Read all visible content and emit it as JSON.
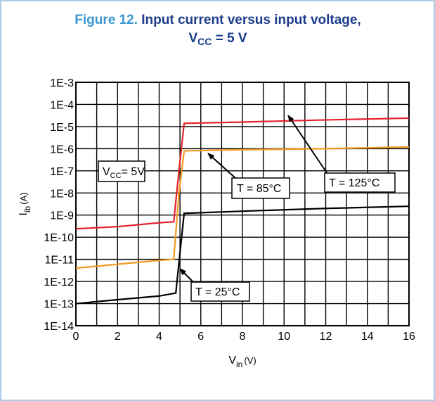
{
  "chart_data": {
    "type": "line",
    "title": {
      "label": "Figure 12.",
      "text": "Input current versus input voltage,",
      "line2_main": "V",
      "line2_sub": "CC",
      "line2_rest": " = 5 V"
    },
    "xlabel": {
      "main": "V",
      "sub": "in",
      "unit": "(V)"
    },
    "ylabel": {
      "main": "I",
      "sub": "ib",
      "unit": "(A)"
    },
    "xlim": [
      0,
      16
    ],
    "xticks": [
      0,
      2,
      4,
      6,
      8,
      10,
      12,
      14,
      16
    ],
    "xminor": [
      1,
      3,
      5,
      7,
      9,
      11,
      13,
      15
    ],
    "ylim": [
      1e-14,
      0.001
    ],
    "ylog": true,
    "yticks": [
      {
        "value": 0.001,
        "label": "1E-3"
      },
      {
        "value": 0.0001,
        "label": "1E-4"
      },
      {
        "value": 1e-05,
        "label": "1E-5"
      },
      {
        "value": 1e-06,
        "label": "1E-6"
      },
      {
        "value": 1e-07,
        "label": "1E-7"
      },
      {
        "value": 1e-08,
        "label": "1E-8"
      },
      {
        "value": 1e-09,
        "label": "1E-9"
      },
      {
        "value": 1e-10,
        "label": "1E-10"
      },
      {
        "value": 1e-11,
        "label": "1E-11"
      },
      {
        "value": 1e-12,
        "label": "1E-12"
      },
      {
        "value": 1e-13,
        "label": "1E-13"
      },
      {
        "value": 1e-14,
        "label": "1E-14"
      }
    ],
    "grid": true,
    "series": [
      {
        "color": "#000000",
        "x": [
          0,
          2,
          4,
          4.8,
          5.0,
          5.2,
          8,
          12,
          16
        ],
        "values": [
          1e-13,
          1.5e-13,
          2.2e-13,
          3e-13,
          2e-11,
          1.2e-09,
          1.5e-09,
          2e-09,
          2.5e-09
        ]
      },
      {
        "color": "#f29a1f",
        "x": [
          0,
          2,
          4,
          4.7,
          4.95,
          5.2,
          8,
          12,
          16
        ],
        "values": [
          4e-12,
          6e-12,
          9e-12,
          1e-11,
          1e-08,
          8e-07,
          9e-07,
          1e-06,
          1.2e-06
        ]
      },
      {
        "color": "#e3222b",
        "x": [
          0,
          2,
          4,
          4.7,
          4.95,
          5.2,
          8,
          12,
          16
        ],
        "values": [
          2.4e-10,
          3e-10,
          4.5e-10,
          5e-10,
          1e-07,
          1.4e-05,
          1.6e-05,
          2e-05,
          2.4e-05
        ]
      }
    ],
    "annotations": [
      {
        "main": "V",
        "sub": "CC",
        "rest": "= 5V"
      },
      {
        "text": "T = 85°C"
      },
      {
        "text": "T = 125°C"
      },
      {
        "text": "T = 25°C"
      }
    ]
  }
}
